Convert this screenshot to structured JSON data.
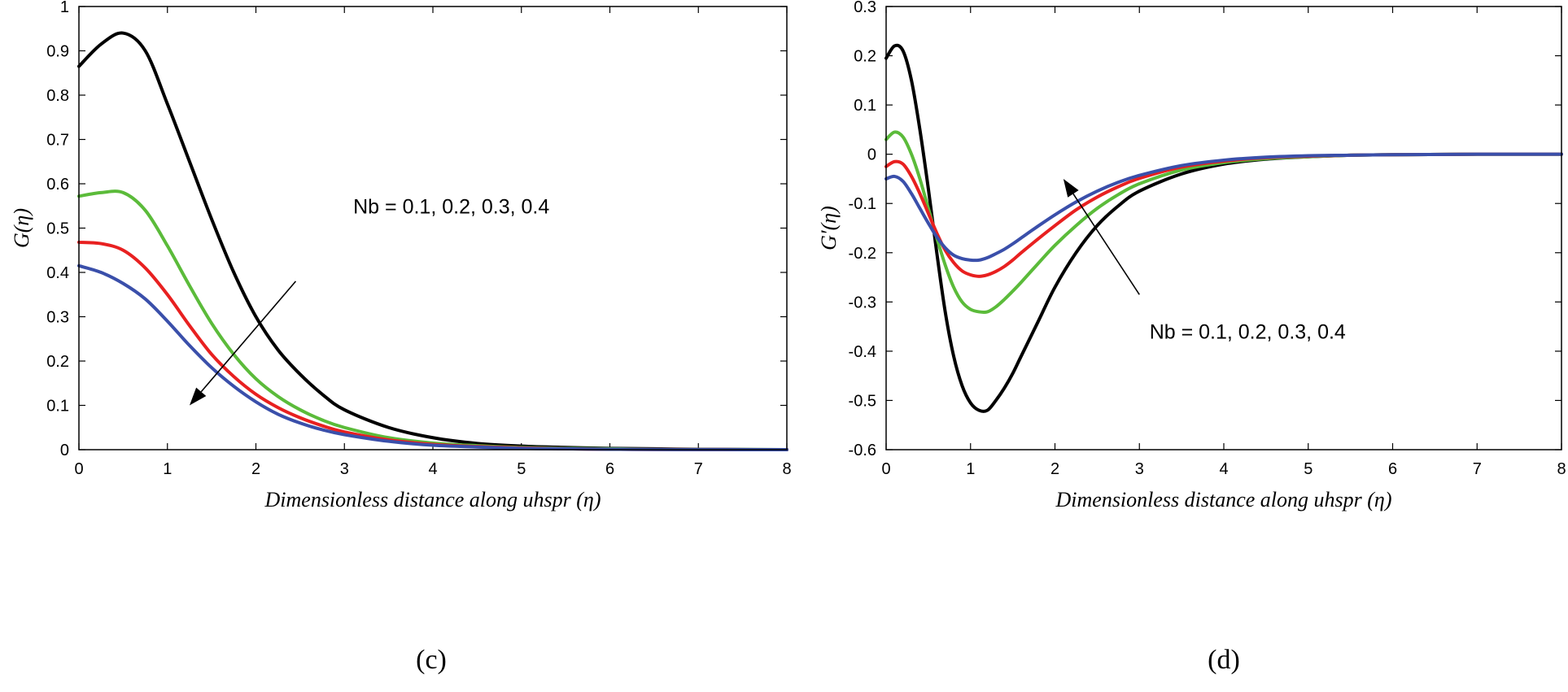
{
  "chart_data": [
    {
      "type": "line",
      "panel_label": "(c)",
      "xlabel": "Dimensionless distance along uhspr (η)",
      "ylabel": "G(η)",
      "xlim": [
        0,
        8
      ],
      "ylim": [
        0,
        1
      ],
      "xticks": [
        0,
        1,
        2,
        3,
        4,
        5,
        6,
        7,
        8
      ],
      "yticks": [
        0,
        0.1,
        0.2,
        0.3,
        0.4,
        0.5,
        0.6,
        0.7,
        0.8,
        0.9,
        1
      ],
      "grid": false,
      "annotation": {
        "text": "Nb = 0.1, 0.2, 0.3, 0.4",
        "text_at": [
          3.1,
          0.55
        ],
        "arrow_from": [
          2.45,
          0.38
        ],
        "arrow_to": [
          1.25,
          0.1
        ]
      },
      "x": [
        0,
        0.25,
        0.5,
        0.75,
        1,
        1.25,
        1.5,
        1.75,
        2,
        2.25,
        2.5,
        2.75,
        3,
        3.5,
        4,
        4.5,
        5,
        5.5,
        6,
        6.5,
        7,
        7.5,
        8
      ],
      "series": [
        {
          "name": "Nb = 0.1",
          "color": "#000000",
          "values": [
            0.865,
            0.915,
            0.94,
            0.9,
            0.78,
            0.65,
            0.52,
            0.4,
            0.3,
            0.225,
            0.17,
            0.125,
            0.09,
            0.05,
            0.027,
            0.014,
            0.008,
            0.005,
            0.003,
            0.002,
            0.001,
            0.0005,
            0
          ]
        },
        {
          "name": "Nb = 0.2",
          "color": "#5bbb3a",
          "values": [
            0.572,
            0.58,
            0.58,
            0.54,
            0.46,
            0.37,
            0.285,
            0.215,
            0.16,
            0.12,
            0.09,
            0.067,
            0.05,
            0.027,
            0.015,
            0.009,
            0.005,
            0.003,
            0.002,
            0.001,
            0.0005,
            0.0002,
            0
          ]
        },
        {
          "name": "Nb = 0.3",
          "color": "#e82020",
          "values": [
            0.468,
            0.465,
            0.45,
            0.41,
            0.35,
            0.28,
            0.215,
            0.165,
            0.125,
            0.095,
            0.072,
            0.054,
            0.04,
            0.022,
            0.012,
            0.007,
            0.004,
            0.002,
            0.001,
            0.0005,
            0.0003,
            0.0001,
            0
          ]
        },
        {
          "name": "Nb = 0.4",
          "color": "#3a4faa",
          "values": [
            0.415,
            0.4,
            0.375,
            0.34,
            0.29,
            0.235,
            0.185,
            0.143,
            0.108,
            0.08,
            0.06,
            0.045,
            0.034,
            0.019,
            0.01,
            0.006,
            0.003,
            0.002,
            0.001,
            0.0005,
            0.0002,
            0.0001,
            0
          ]
        }
      ]
    },
    {
      "type": "line",
      "panel_label": "(d)",
      "xlabel": "Dimensionless distance along uhspr (η)",
      "ylabel": "G′(η)",
      "xlim": [
        0,
        8
      ],
      "ylim": [
        -0.6,
        0.3
      ],
      "xticks": [
        0,
        1,
        2,
        3,
        4,
        5,
        6,
        7,
        8
      ],
      "yticks": [
        -0.6,
        -0.5,
        -0.4,
        -0.3,
        -0.2,
        -0.1,
        0,
        0.1,
        0.2,
        0.3
      ],
      "grid": false,
      "annotation": {
        "text": "Nb = 0.1, 0.2, 0.3, 0.4",
        "text_at": [
          3.12,
          -0.36
        ],
        "arrow_from": [
          3.0,
          -0.285
        ],
        "arrow_to": [
          2.1,
          -0.05
        ]
      },
      "x": [
        0,
        0.1,
        0.2,
        0.3,
        0.4,
        0.5,
        0.6,
        0.7,
        0.8,
        0.9,
        1.0,
        1.1,
        1.2,
        1.3,
        1.4,
        1.5,
        1.6,
        1.8,
        2.0,
        2.25,
        2.5,
        2.75,
        3.0,
        3.5,
        4.0,
        4.5,
        5.0,
        5.5,
        6.0,
        7.0,
        8.0
      ],
      "series": [
        {
          "name": "Nb = 0.1",
          "color": "#000000",
          "values": [
            0.195,
            0.22,
            0.21,
            0.15,
            0.05,
            -0.07,
            -0.2,
            -0.32,
            -0.41,
            -0.47,
            -0.505,
            -0.52,
            -0.52,
            -0.5,
            -0.475,
            -0.445,
            -0.41,
            -0.34,
            -0.27,
            -0.2,
            -0.145,
            -0.105,
            -0.075,
            -0.04,
            -0.02,
            -0.01,
            -0.005,
            -0.002,
            -0.001,
            0,
            0
          ]
        },
        {
          "name": "Nb = 0.2",
          "color": "#5bbb3a",
          "values": [
            0.03,
            0.045,
            0.035,
            0.0,
            -0.05,
            -0.11,
            -0.17,
            -0.225,
            -0.27,
            -0.3,
            -0.315,
            -0.32,
            -0.32,
            -0.31,
            -0.295,
            -0.278,
            -0.26,
            -0.222,
            -0.185,
            -0.145,
            -0.11,
            -0.082,
            -0.06,
            -0.032,
            -0.017,
            -0.009,
            -0.005,
            -0.002,
            -0.001,
            0,
            0
          ]
        },
        {
          "name": "Nb = 0.3",
          "color": "#e82020",
          "values": [
            -0.025,
            -0.015,
            -0.02,
            -0.045,
            -0.08,
            -0.12,
            -0.16,
            -0.195,
            -0.22,
            -0.237,
            -0.245,
            -0.248,
            -0.245,
            -0.238,
            -0.228,
            -0.215,
            -0.2,
            -0.172,
            -0.145,
            -0.113,
            -0.087,
            -0.066,
            -0.049,
            -0.026,
            -0.014,
            -0.007,
            -0.004,
            -0.002,
            -0.001,
            0,
            0
          ]
        },
        {
          "name": "Nb = 0.4",
          "color": "#3a4faa",
          "values": [
            -0.05,
            -0.045,
            -0.055,
            -0.08,
            -0.11,
            -0.14,
            -0.168,
            -0.19,
            -0.205,
            -0.212,
            -0.215,
            -0.215,
            -0.21,
            -0.202,
            -0.193,
            -0.182,
            -0.17,
            -0.146,
            -0.123,
            -0.097,
            -0.075,
            -0.057,
            -0.043,
            -0.023,
            -0.012,
            -0.006,
            -0.003,
            -0.002,
            -0.001,
            0,
            0
          ]
        }
      ]
    }
  ]
}
